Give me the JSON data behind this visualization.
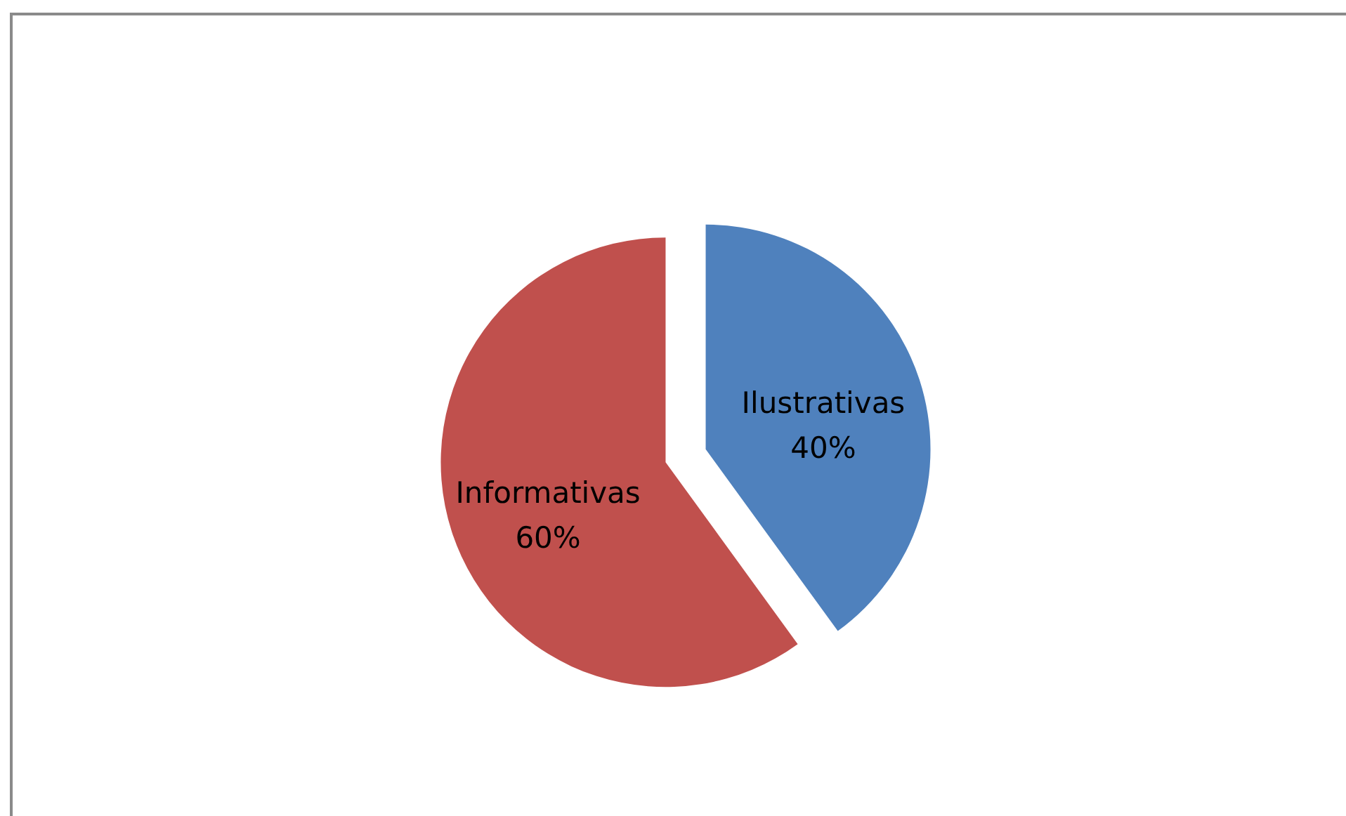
{
  "chart_data": {
    "type": "pie",
    "categories": [
      "Ilustrativas",
      "Informativas"
    ],
    "values": [
      40,
      60
    ],
    "colors": [
      "#4f81bd",
      "#c0504d"
    ],
    "value_labels": [
      "40%",
      "60%"
    ]
  }
}
